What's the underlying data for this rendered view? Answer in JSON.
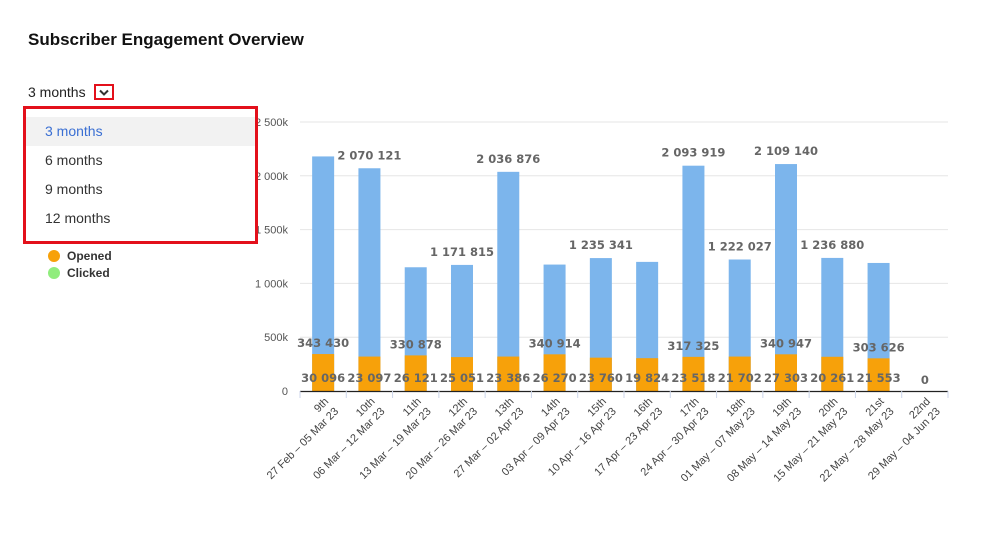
{
  "page": {
    "title": "Subscriber Engagement Overview"
  },
  "period": {
    "selected_label": "3 months",
    "options": [
      "3 months",
      "6 months",
      "9 months",
      "12 months"
    ],
    "selected_index": 0
  },
  "legend": {
    "opened": "Opened",
    "clicked": "Clicked"
  },
  "colors": {
    "sent": "#7cb5ec",
    "opened": "#f7a10a",
    "clicked": "#90ed7d",
    "highlight": "#e3101b"
  },
  "chart_data": {
    "type": "bar",
    "stacked": true,
    "ylim": [
      0,
      2500000
    ],
    "yticks": [
      0,
      500000,
      1000000,
      1500000,
      2000000,
      2500000
    ],
    "ytick_labels": [
      "0",
      "500k",
      "1 000k",
      "1 500k",
      "2 000k",
      "2 500k"
    ],
    "categories": [
      {
        "week": "9th",
        "range": "27 Feb – 05 Mar 23"
      },
      {
        "week": "10th",
        "range": "06 Mar – 12 Mar 23"
      },
      {
        "week": "11th",
        "range": "13 Mar – 19 Mar 23"
      },
      {
        "week": "12th",
        "range": "20 Mar – 26 Mar 23"
      },
      {
        "week": "13th",
        "range": "27 Mar – 02 Apr 23"
      },
      {
        "week": "14th",
        "range": "03 Apr – 09 Apr 23"
      },
      {
        "week": "15th",
        "range": "10 Apr – 16 Apr 23"
      },
      {
        "week": "16th",
        "range": "17 Apr – 23 Apr 23"
      },
      {
        "week": "17th",
        "range": "24 Apr – 30 Apr 23"
      },
      {
        "week": "18th",
        "range": "01 May – 07 May 23"
      },
      {
        "week": "19th",
        "range": "08 May – 14 May 23"
      },
      {
        "week": "20th",
        "range": "15 May – 21 May 23"
      },
      {
        "week": "21st",
        "range": "22 May – 28 May 23"
      },
      {
        "week": "22nd",
        "range": "29 May – 04 Jun 23"
      }
    ],
    "series": [
      {
        "name": "",
        "values": [
          2180000,
          2070121,
          1150000,
          1171815,
          2036876,
          1175000,
          1235341,
          1200000,
          2093919,
          1222027,
          2109140,
          1236880,
          1190000,
          0
        ],
        "labels": [
          "",
          "2 070 121",
          "",
          "1 171 815",
          "2 036 876",
          "",
          "1 235 341",
          "",
          "2 093 919",
          "1 222 027",
          "2 109 140",
          "1 236 880",
          "",
          "0"
        ]
      },
      {
        "name": "Opened",
        "values": [
          343430,
          320000,
          330878,
          315000,
          320000,
          340914,
          310000,
          305000,
          317325,
          320000,
          340947,
          318000,
          303626,
          0
        ],
        "labels": [
          "343 430",
          "",
          "330 878",
          "",
          "",
          "340 914",
          "",
          "",
          "317 325",
          "",
          "340 947",
          "",
          "303 626",
          ""
        ]
      },
      {
        "name": "Clicked",
        "values": [
          30096,
          23097,
          26121,
          25051,
          23386,
          26270,
          23760,
          19824,
          23518,
          21702,
          27303,
          20261,
          21553,
          0
        ],
        "labels": [
          "30 096",
          "23 097",
          "26 121",
          "25 051",
          "23 386",
          "26 270",
          "23 760",
          "19 824",
          "23 518",
          "21 702",
          "27 303",
          "20 261",
          "21 553",
          ""
        ]
      }
    ]
  }
}
